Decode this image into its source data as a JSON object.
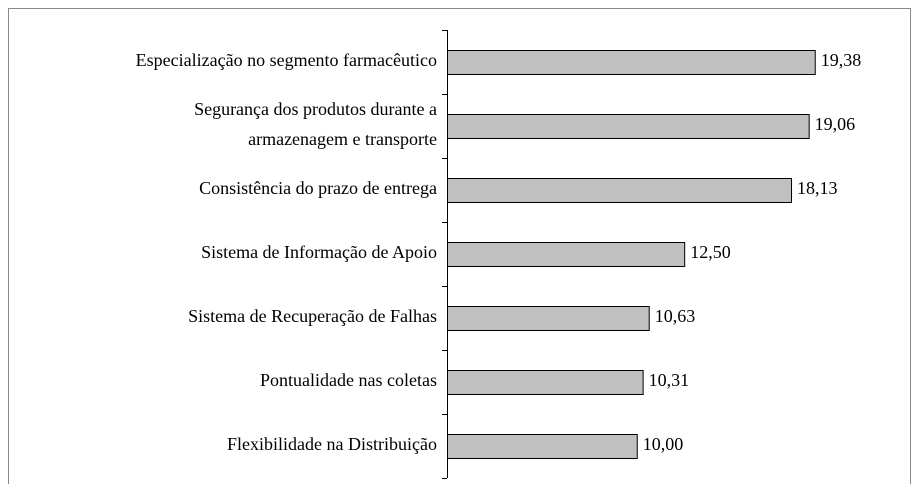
{
  "chart_data": {
    "type": "bar",
    "orientation": "horizontal",
    "categories": [
      "Especialização no segmento farmacêutico",
      "Segurança dos produtos durante a\narmazenagem e transporte",
      "Consistência do prazo de entrega",
      "Sistema de Informação de Apoio",
      "Sistema de Recuperação de Falhas",
      "Pontualidade nas coletas",
      "Flexibilidade na Distribuição"
    ],
    "values": [
      19.38,
      19.06,
      18.13,
      12.5,
      10.63,
      10.31,
      10.0
    ],
    "value_labels": [
      "19,38",
      "19,06",
      "18,13",
      "12,50",
      "10,63",
      "10,31",
      "10,00"
    ],
    "color": "#c0c0c0",
    "xlim": [
      0,
      24.4
    ]
  }
}
